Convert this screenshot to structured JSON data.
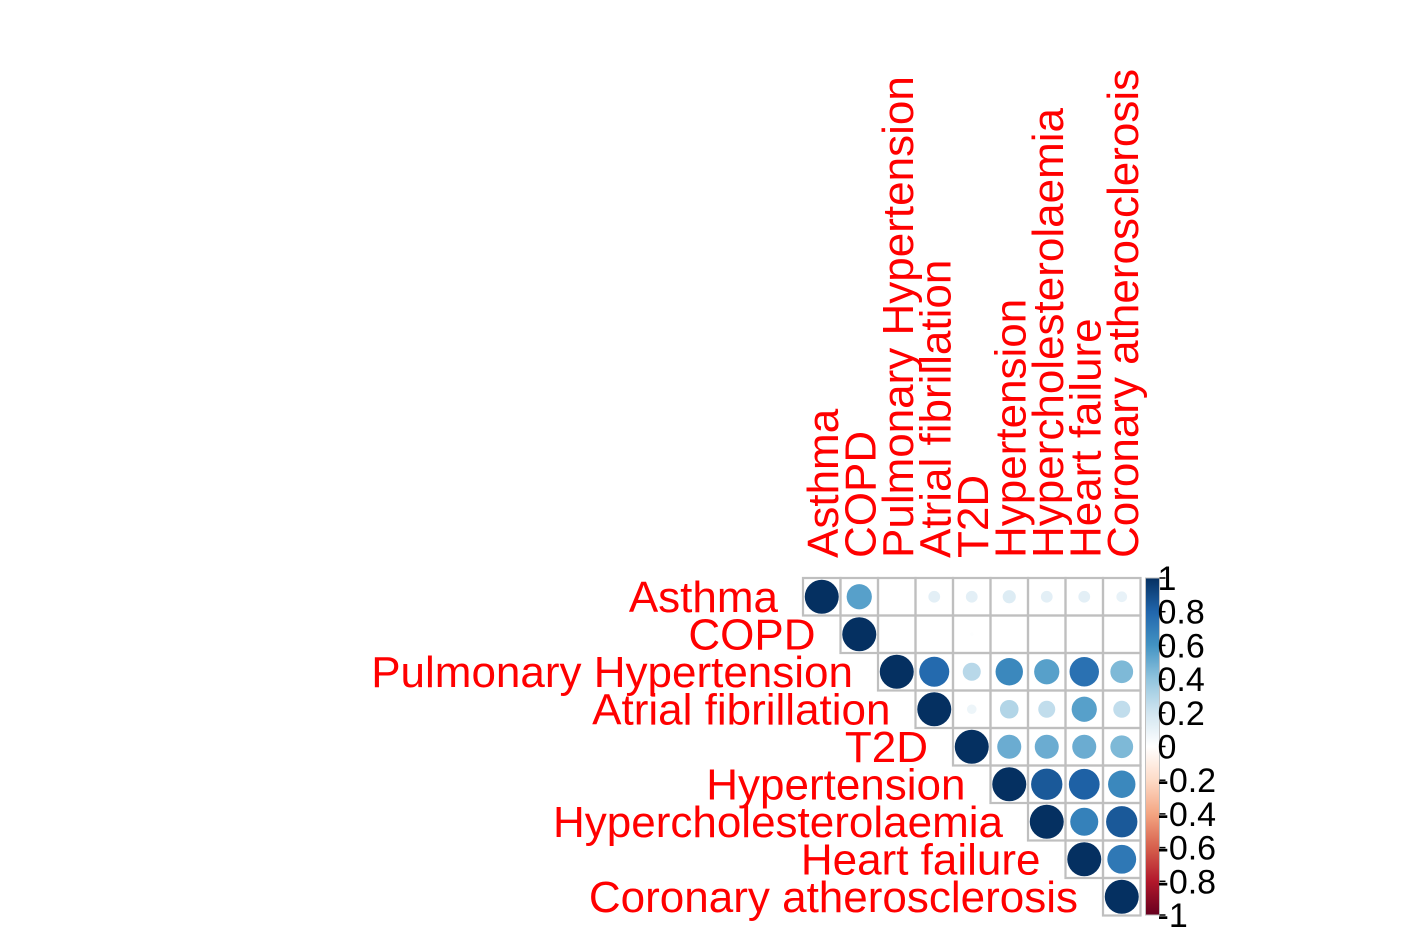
{
  "chart_data": {
    "type": "heatmap",
    "subtype": "correlation-matrix-upper-triangle-circles",
    "variables": [
      "Asthma",
      "COPD",
      "Pulmonary Hypertension",
      "Atrial fibrillation",
      "T2D",
      "Hypertension",
      "Hypercholesterolaemia",
      "Heart failure",
      "Coronary atherosclerosis"
    ],
    "matrix": [
      [
        1,
        0.55,
        0.0,
        0.12,
        0.12,
        0.15,
        0.12,
        0.12,
        0.1
      ],
      [
        null,
        1,
        0.0,
        0.0,
        0.01,
        0.0,
        0.0,
        0.0,
        0.0
      ],
      [
        null,
        null,
        1,
        0.78,
        0.28,
        0.65,
        0.55,
        0.75,
        0.45
      ],
      [
        null,
        null,
        null,
        1,
        0.08,
        0.3,
        0.25,
        0.55,
        0.25
      ],
      [
        null,
        null,
        null,
        null,
        1,
        0.5,
        0.5,
        0.5,
        0.45
      ],
      [
        null,
        null,
        null,
        null,
        null,
        1,
        0.85,
        0.82,
        0.65
      ],
      [
        null,
        null,
        null,
        null,
        null,
        null,
        1,
        0.68,
        0.85
      ],
      [
        null,
        null,
        null,
        null,
        null,
        null,
        null,
        1,
        0.72
      ],
      [
        null,
        null,
        null,
        null,
        null,
        null,
        null,
        null,
        1
      ]
    ],
    "colorbar": {
      "ticks": [
        "1",
        "0.8",
        "0.6",
        "0.4",
        "0.2",
        "0",
        "-0.2",
        "-0.4",
        "-0.6",
        "-0.8",
        "-1"
      ],
      "range": [
        -1,
        1
      ]
    },
    "colors": {
      "label": "#ff0000",
      "grid": "#bfbfbf",
      "positive_strong": "#053061",
      "negative_strong": "#67001f"
    }
  }
}
